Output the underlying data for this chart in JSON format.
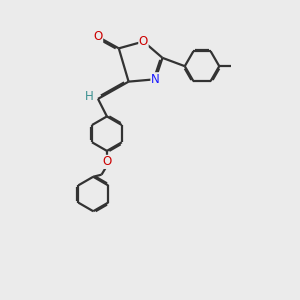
{
  "bg_color": "#ebebeb",
  "bond_color": "#333333",
  "bond_width": 1.6,
  "atom_colors": {
    "O": "#cc0000",
    "N": "#1a1aff",
    "H": "#3a9090",
    "C": "#333333"
  },
  "font_size": 8.5,
  "figsize": [
    3.0,
    3.0
  ],
  "dpi": 100
}
